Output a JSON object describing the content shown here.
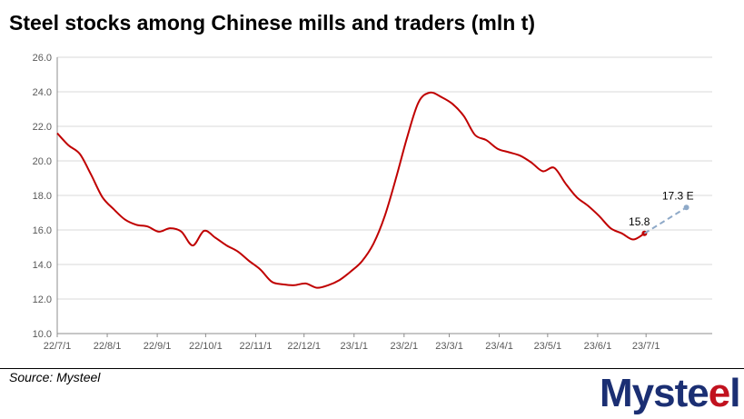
{
  "title": "Steel stocks among Chinese mills and traders (mln t)",
  "source": "Source: Mysteel",
  "logo_text": "Mysteel",
  "colors": {
    "series": "#c00000",
    "estimate": "#8ea9c8",
    "grid": "#d9d9d9",
    "logo": "#1b2f73",
    "logo_accent": "#c1121f"
  },
  "chart_data": {
    "type": "line",
    "title": "Steel stocks among Chinese mills and traders (mln t)",
    "xlabel": "",
    "ylabel": "",
    "ylim": [
      10,
      26
    ],
    "yticks": [
      "10.0",
      "12.0",
      "14.0",
      "16.0",
      "18.0",
      "20.0",
      "22.0",
      "24.0",
      "26.0"
    ],
    "xticks": [
      "22/7/1",
      "22/8/1",
      "22/9/1",
      "22/10/1",
      "22/11/1",
      "22/12/1",
      "23/1/1",
      "23/2/1",
      "23/3/1",
      "23/4/1",
      "23/5/1",
      "23/6/1",
      "23/7/1"
    ],
    "grid": true,
    "series": [
      {
        "style": "solid",
        "x": [
          "2022-07-01",
          "2022-07-08",
          "2022-07-15",
          "2022-07-22",
          "2022-07-29",
          "2022-08-05",
          "2022-08-12",
          "2022-08-19",
          "2022-08-26",
          "2022-09-02",
          "2022-09-09",
          "2022-09-16",
          "2022-09-23",
          "2022-09-30",
          "2022-10-07",
          "2022-10-14",
          "2022-10-21",
          "2022-10-28",
          "2022-11-04",
          "2022-11-11",
          "2022-11-18",
          "2022-11-25",
          "2022-12-02",
          "2022-12-09",
          "2022-12-16",
          "2022-12-23",
          "2022-12-30",
          "2023-01-06",
          "2023-01-13",
          "2023-01-20",
          "2023-01-27",
          "2023-02-03",
          "2023-02-10",
          "2023-02-17",
          "2023-02-24",
          "2023-03-03",
          "2023-03-10",
          "2023-03-17",
          "2023-03-24",
          "2023-03-31",
          "2023-04-07",
          "2023-04-14",
          "2023-04-21",
          "2023-04-28",
          "2023-05-05",
          "2023-05-12",
          "2023-05-19",
          "2023-05-26",
          "2023-06-02",
          "2023-06-09",
          "2023-06-16",
          "2023-06-23",
          "2023-06-30"
        ],
        "values": [
          21.6,
          20.9,
          20.4,
          19.2,
          17.9,
          17.2,
          16.6,
          16.3,
          16.2,
          15.9,
          16.1,
          15.9,
          15.1,
          15.95,
          15.55,
          15.1,
          14.75,
          14.2,
          13.7,
          13.0,
          12.85,
          12.8,
          12.9,
          12.65,
          12.8,
          13.1,
          13.6,
          14.2,
          15.2,
          16.8,
          19.0,
          21.4,
          23.4,
          23.95,
          23.7,
          23.3,
          22.6,
          21.5,
          21.2,
          20.7,
          20.5,
          20.3,
          19.9,
          19.4,
          19.6,
          18.7,
          17.9,
          17.4,
          16.8,
          16.1,
          15.8,
          15.45,
          15.8
        ]
      },
      {
        "style": "dashed",
        "x": [
          "2023-06-30",
          "2023-07-26"
        ],
        "values": [
          15.8,
          17.3
        ]
      }
    ],
    "data_labels": [
      {
        "text": "15.8",
        "x": "2023-06-30",
        "y": 15.8
      },
      {
        "text": "17.3 E",
        "x": "2023-07-26",
        "y": 17.3
      }
    ]
  }
}
